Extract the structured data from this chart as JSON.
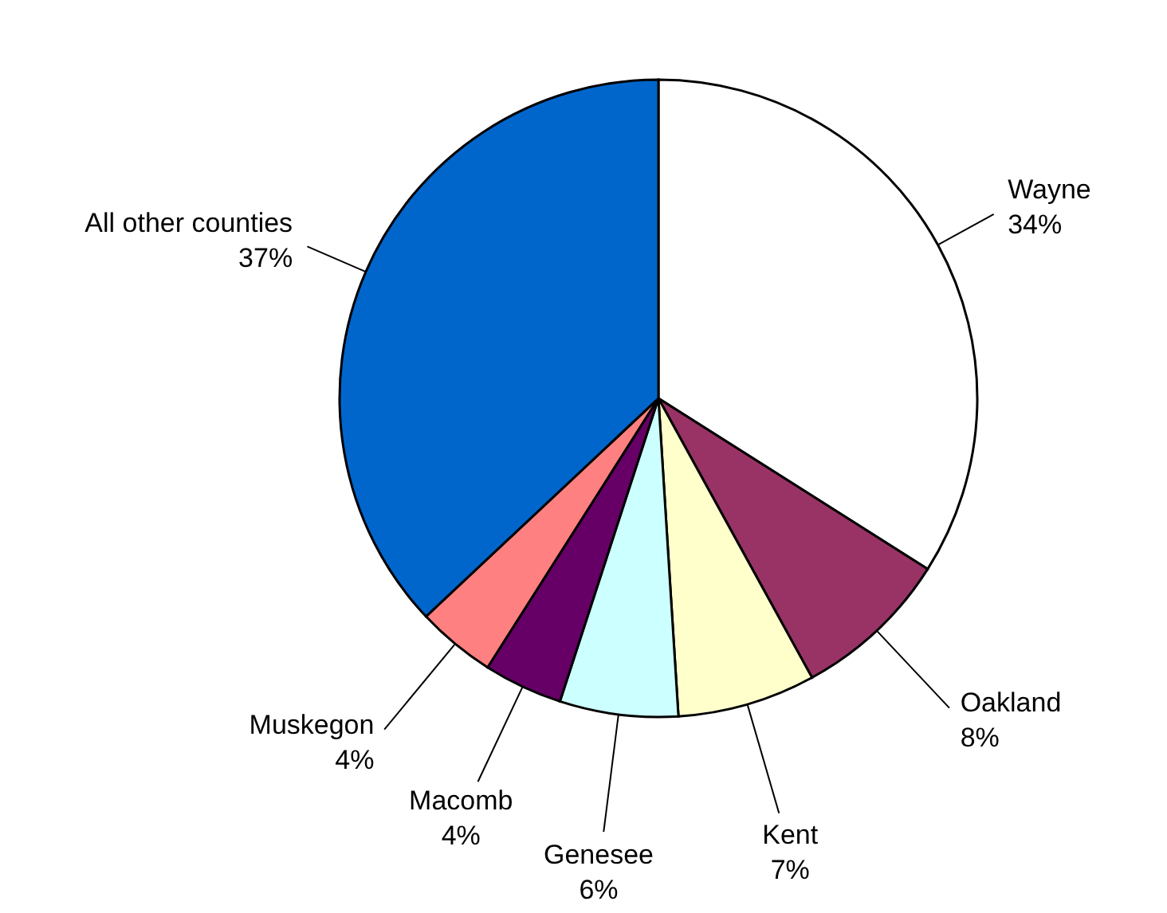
{
  "chart_data": {
    "type": "pie",
    "categories": [
      "Wayne",
      "Oakland",
      "Kent",
      "Genesee",
      "Macomb",
      "Muskegon",
      "All other counties"
    ],
    "values": [
      34,
      8,
      7,
      6,
      4,
      4,
      37
    ],
    "value_labels": [
      "34%",
      "8%",
      "7%",
      "6%",
      "4%",
      "4%",
      "37%"
    ],
    "colors": [
      "#ffffff",
      "#993366",
      "#ffffcc",
      "#ccffff",
      "#660066",
      "#ff8080",
      "#0066cc"
    ]
  }
}
